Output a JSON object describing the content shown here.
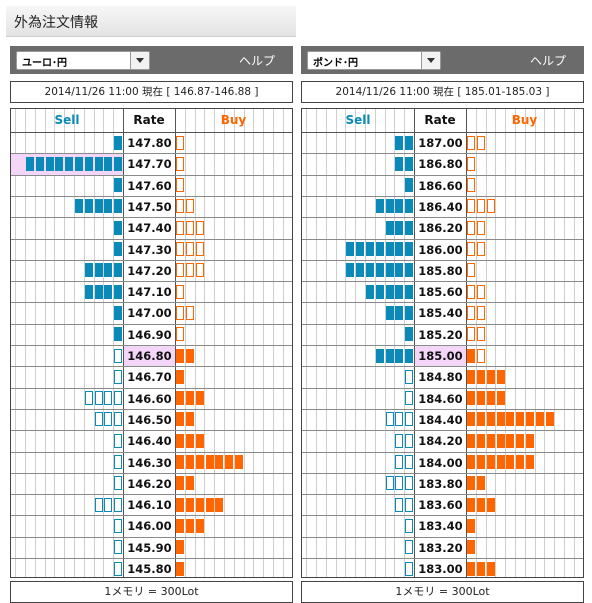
{
  "page_title": "外為注文情報",
  "colors": {
    "sell": "#0a8ab8",
    "buy": "#ff6600",
    "current_rate_bg": "#f4d6f8"
  },
  "panels": [
    {
      "pair": "ユーロ･円",
      "help": "ヘルプ",
      "info": "2014/11/26  11:00 現在 [ 146.87-146.88 ]",
      "header": {
        "sell": "Sell",
        "rate": "Rate",
        "buy": "Buy"
      },
      "footer": "1メモリ = 300Lot",
      "current_rate": "146.80",
      "rows": [
        {
          "rate": "147.80",
          "sell": 1,
          "sell_type": "filled",
          "buy": 1,
          "buy_type": "empty",
          "sell_highlight": false
        },
        {
          "rate": "147.70",
          "sell": 10,
          "sell_type": "filled",
          "buy": 1,
          "buy_type": "empty",
          "sell_highlight": true
        },
        {
          "rate": "147.60",
          "sell": 1,
          "sell_type": "filled",
          "buy": 1,
          "buy_type": "empty",
          "sell_highlight": false
        },
        {
          "rate": "147.50",
          "sell": 5,
          "sell_type": "filled",
          "buy": 2,
          "buy_type": "empty",
          "sell_highlight": false
        },
        {
          "rate": "147.40",
          "sell": 1,
          "sell_type": "filled",
          "buy": 3,
          "buy_type": "empty",
          "sell_highlight": false
        },
        {
          "rate": "147.30",
          "sell": 1,
          "sell_type": "filled",
          "buy": 3,
          "buy_type": "empty",
          "sell_highlight": false
        },
        {
          "rate": "147.20",
          "sell": 4,
          "sell_type": "filled",
          "buy": 3,
          "buy_type": "empty",
          "sell_highlight": false
        },
        {
          "rate": "147.10",
          "sell": 4,
          "sell_type": "filled",
          "buy": 1,
          "buy_type": "empty",
          "sell_highlight": false
        },
        {
          "rate": "147.00",
          "sell": 1,
          "sell_type": "filled",
          "buy": 2,
          "buy_type": "empty",
          "sell_highlight": false
        },
        {
          "rate": "146.90",
          "sell": 1,
          "sell_type": "filled",
          "buy": 1,
          "buy_type": "empty",
          "sell_highlight": false
        },
        {
          "rate": "146.80",
          "sell": 1,
          "sell_type": "empty",
          "buy": 2,
          "buy_type": "filled",
          "sell_highlight": false
        },
        {
          "rate": "146.70",
          "sell": 1,
          "sell_type": "empty",
          "buy": 1,
          "buy_type": "filled",
          "sell_highlight": false
        },
        {
          "rate": "146.60",
          "sell": 4,
          "sell_type": "empty",
          "buy": 3,
          "buy_type": "filled",
          "sell_highlight": false
        },
        {
          "rate": "146.50",
          "sell": 3,
          "sell_type": "empty",
          "buy": 2,
          "buy_type": "filled",
          "sell_highlight": false
        },
        {
          "rate": "146.40",
          "sell": 1,
          "sell_type": "empty",
          "buy": 3,
          "buy_type": "filled",
          "sell_highlight": false
        },
        {
          "rate": "146.30",
          "sell": 1,
          "sell_type": "empty",
          "buy": 7,
          "buy_type": "filled",
          "sell_highlight": false
        },
        {
          "rate": "146.20",
          "sell": 1,
          "sell_type": "empty",
          "buy": 2,
          "buy_type": "filled",
          "sell_highlight": false
        },
        {
          "rate": "146.10",
          "sell": 3,
          "sell_type": "empty",
          "buy": 5,
          "buy_type": "filled",
          "sell_highlight": false
        },
        {
          "rate": "146.00",
          "sell": 1,
          "sell_type": "empty",
          "buy": 3,
          "buy_type": "filled",
          "sell_highlight": false
        },
        {
          "rate": "145.90",
          "sell": 1,
          "sell_type": "empty",
          "buy": 1,
          "buy_type": "filled",
          "sell_highlight": false
        },
        {
          "rate": "145.80",
          "sell": 1,
          "sell_type": "empty",
          "buy": 1,
          "buy_type": "filled",
          "sell_highlight": false
        }
      ]
    },
    {
      "pair": "ポンド･円",
      "help": "ヘルプ",
      "info": "2014/11/26  11:00 現在 [ 185.01-185.03 ]",
      "header": {
        "sell": "Sell",
        "rate": "Rate",
        "buy": "Buy"
      },
      "footer": "1メモリ = 300Lot",
      "current_rate": "185.00",
      "rows": [
        {
          "rate": "187.00",
          "sell": 2,
          "sell_type": "filled",
          "buy": 2,
          "buy_type": "empty",
          "sell_highlight": false
        },
        {
          "rate": "186.80",
          "sell": 2,
          "sell_type": "filled",
          "buy": 1,
          "buy_type": "empty",
          "sell_highlight": false
        },
        {
          "rate": "186.60",
          "sell": 1,
          "sell_type": "filled",
          "buy": 1,
          "buy_type": "empty",
          "sell_highlight": false
        },
        {
          "rate": "186.40",
          "sell": 4,
          "sell_type": "filled",
          "buy": 3,
          "buy_type": "empty",
          "sell_highlight": false
        },
        {
          "rate": "186.20",
          "sell": 3,
          "sell_type": "filled",
          "buy": 2,
          "buy_type": "empty",
          "sell_highlight": false
        },
        {
          "rate": "186.00",
          "sell": 7,
          "sell_type": "filled",
          "buy": 2,
          "buy_type": "empty",
          "sell_highlight": false
        },
        {
          "rate": "185.80",
          "sell": 7,
          "sell_type": "filled",
          "buy": 1,
          "buy_type": "empty",
          "sell_highlight": false
        },
        {
          "rate": "185.60",
          "sell": 5,
          "sell_type": "filled",
          "buy": 2,
          "buy_type": "empty",
          "sell_highlight": false
        },
        {
          "rate": "185.40",
          "sell": 3,
          "sell_type": "filled",
          "buy": 2,
          "buy_type": "empty",
          "sell_highlight": false
        },
        {
          "rate": "185.20",
          "sell": 1,
          "sell_type": "filled",
          "buy": 2,
          "buy_type": "empty",
          "sell_highlight": false
        },
        {
          "rate": "185.00",
          "sell": 4,
          "sell_type": "filled",
          "buy": 1,
          "buy_type": "filled",
          "buy_extra_empty": 1,
          "sell_highlight": false
        },
        {
          "rate": "184.80",
          "sell": 1,
          "sell_type": "empty",
          "buy": 4,
          "buy_type": "filled",
          "sell_highlight": false
        },
        {
          "rate": "184.60",
          "sell": 1,
          "sell_type": "empty",
          "buy": 4,
          "buy_type": "filled",
          "sell_highlight": false
        },
        {
          "rate": "184.40",
          "sell": 3,
          "sell_type": "empty",
          "buy": 9,
          "buy_type": "filled",
          "sell_highlight": false
        },
        {
          "rate": "184.20",
          "sell": 2,
          "sell_type": "empty",
          "buy": 7,
          "buy_type": "filled",
          "sell_highlight": false
        },
        {
          "rate": "184.00",
          "sell": 2,
          "sell_type": "empty",
          "buy": 7,
          "buy_type": "filled",
          "sell_highlight": false
        },
        {
          "rate": "183.80",
          "sell": 3,
          "sell_type": "empty",
          "buy": 2,
          "buy_type": "filled",
          "sell_highlight": false
        },
        {
          "rate": "183.60",
          "sell": 2,
          "sell_type": "empty",
          "buy": 3,
          "buy_type": "filled",
          "sell_highlight": false
        },
        {
          "rate": "183.40",
          "sell": 1,
          "sell_type": "empty",
          "buy": 1,
          "buy_type": "filled",
          "sell_highlight": false
        },
        {
          "rate": "183.20",
          "sell": 1,
          "sell_type": "empty",
          "buy": 1,
          "buy_type": "filled",
          "sell_highlight": false
        },
        {
          "rate": "183.00",
          "sell": 1,
          "sell_type": "empty",
          "buy": 3,
          "buy_type": "filled",
          "sell_highlight": false
        }
      ]
    }
  ]
}
